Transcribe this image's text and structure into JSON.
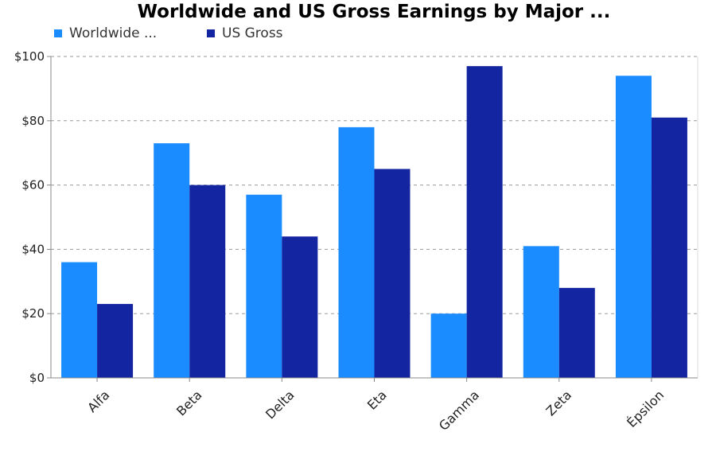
{
  "chart_data": {
    "type": "bar",
    "title": "Worldwide and US Gross Earnings by Major ...",
    "categories": [
      "Alfa",
      "Beta",
      "Delta",
      "Eta",
      "Gamma",
      "Zeta",
      "Épsilon"
    ],
    "series": [
      {
        "name": "Worldwide ...",
        "color": "#1a8cff",
        "values": [
          36,
          73,
          57,
          78,
          20,
          41,
          94
        ]
      },
      {
        "name": "US Gross",
        "color": "#1425a1",
        "values": [
          23,
          60,
          44,
          65,
          97,
          28,
          81
        ]
      }
    ],
    "ylim": [
      0,
      100
    ],
    "yticks": [
      0,
      20,
      40,
      60,
      80,
      100
    ],
    "ytick_labels": [
      "$0",
      "$20",
      "$40",
      "$60",
      "$80",
      "$100"
    ],
    "xlabel": "",
    "ylabel": "",
    "grid": true,
    "legend_position": "top-left"
  }
}
